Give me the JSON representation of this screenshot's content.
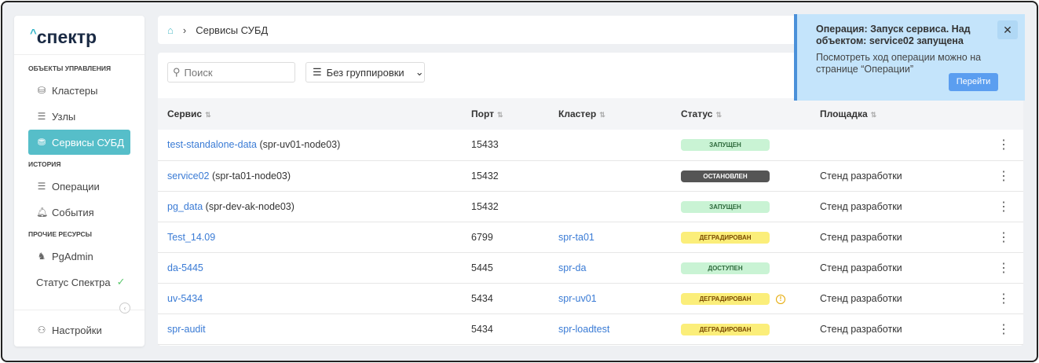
{
  "sidebar": {
    "logo": "спектр",
    "sections": [
      {
        "title": "ОБЪЕКТЫ УПРАВЛЕНИЯ"
      },
      {
        "title": "ИСТОРИЯ"
      },
      {
        "title": "ПРОЧИЕ РЕСУРСЫ"
      }
    ],
    "items": [
      {
        "label": "Кластеры",
        "icon": "cluster-icon"
      },
      {
        "label": "Узлы",
        "icon": "server-icon"
      },
      {
        "label": "Сервисы СУБД",
        "icon": "database-icon",
        "active": true
      },
      {
        "label": "Операции",
        "icon": "operations-icon"
      },
      {
        "label": "События",
        "icon": "bell-icon"
      },
      {
        "label": "PgAdmin",
        "icon": "elephant-icon"
      },
      {
        "label": "Статус Спектра",
        "icon": "check-icon"
      },
      {
        "label": "Настройки",
        "icon": "user-icon"
      }
    ]
  },
  "breadcrumb": {
    "current": "Сервисы СУБД"
  },
  "toolbar": {
    "search_placeholder": "Поиск",
    "grouping": "Без группировки"
  },
  "table": {
    "headers": [
      "Сервис",
      "Порт",
      "Кластер",
      "Статус",
      "Площадка"
    ],
    "rows": [
      {
        "name": "test-standalone-data",
        "node": "(spr-uv01-node03)",
        "port": "15433",
        "cluster": "",
        "status": "ЗАПУЩЕН",
        "site": ""
      },
      {
        "name": "service02",
        "node": "(spr-ta01-node03)",
        "port": "15432",
        "cluster": "",
        "status": "ОСТАНОВЛЕН",
        "site": "Стенд разработки"
      },
      {
        "name": "pg_data",
        "node": "(spr-dev-ak-node03)",
        "port": "15432",
        "cluster": "",
        "status": "ЗАПУЩЕН",
        "site": "Стенд разработки"
      },
      {
        "name": "Test_14.09",
        "node": "",
        "port": "6799",
        "cluster": "spr-ta01",
        "status": "ДЕГРАДИРОВАН",
        "site": "Стенд разработки"
      },
      {
        "name": "da-5445",
        "node": "",
        "port": "5445",
        "cluster": "spr-da",
        "status": "ДОСТУПЕН",
        "site": "Стенд разработки"
      },
      {
        "name": "uv-5434",
        "node": "",
        "port": "5434",
        "cluster": "spr-uv01",
        "status": "ДЕГРАДИРОВАН",
        "site": "Стенд разработки",
        "warning": true
      },
      {
        "name": "spr-audit",
        "node": "",
        "port": "5434",
        "cluster": "spr-loadtest",
        "status": "ДЕГРАДИРОВАН",
        "site": "Стенд разработки"
      }
    ]
  },
  "toast": {
    "title": "Операция: Запуск сервиса. Над объектом: service02 запущена",
    "message": "Посмотреть ход операции можно на странице “Операции”",
    "action": "Перейти"
  },
  "colors": {
    "accent": "#56bec9",
    "link": "#3a7bd5",
    "running": "#c9f3d4",
    "stopped": "#555555",
    "degraded": "#fbee7a"
  }
}
